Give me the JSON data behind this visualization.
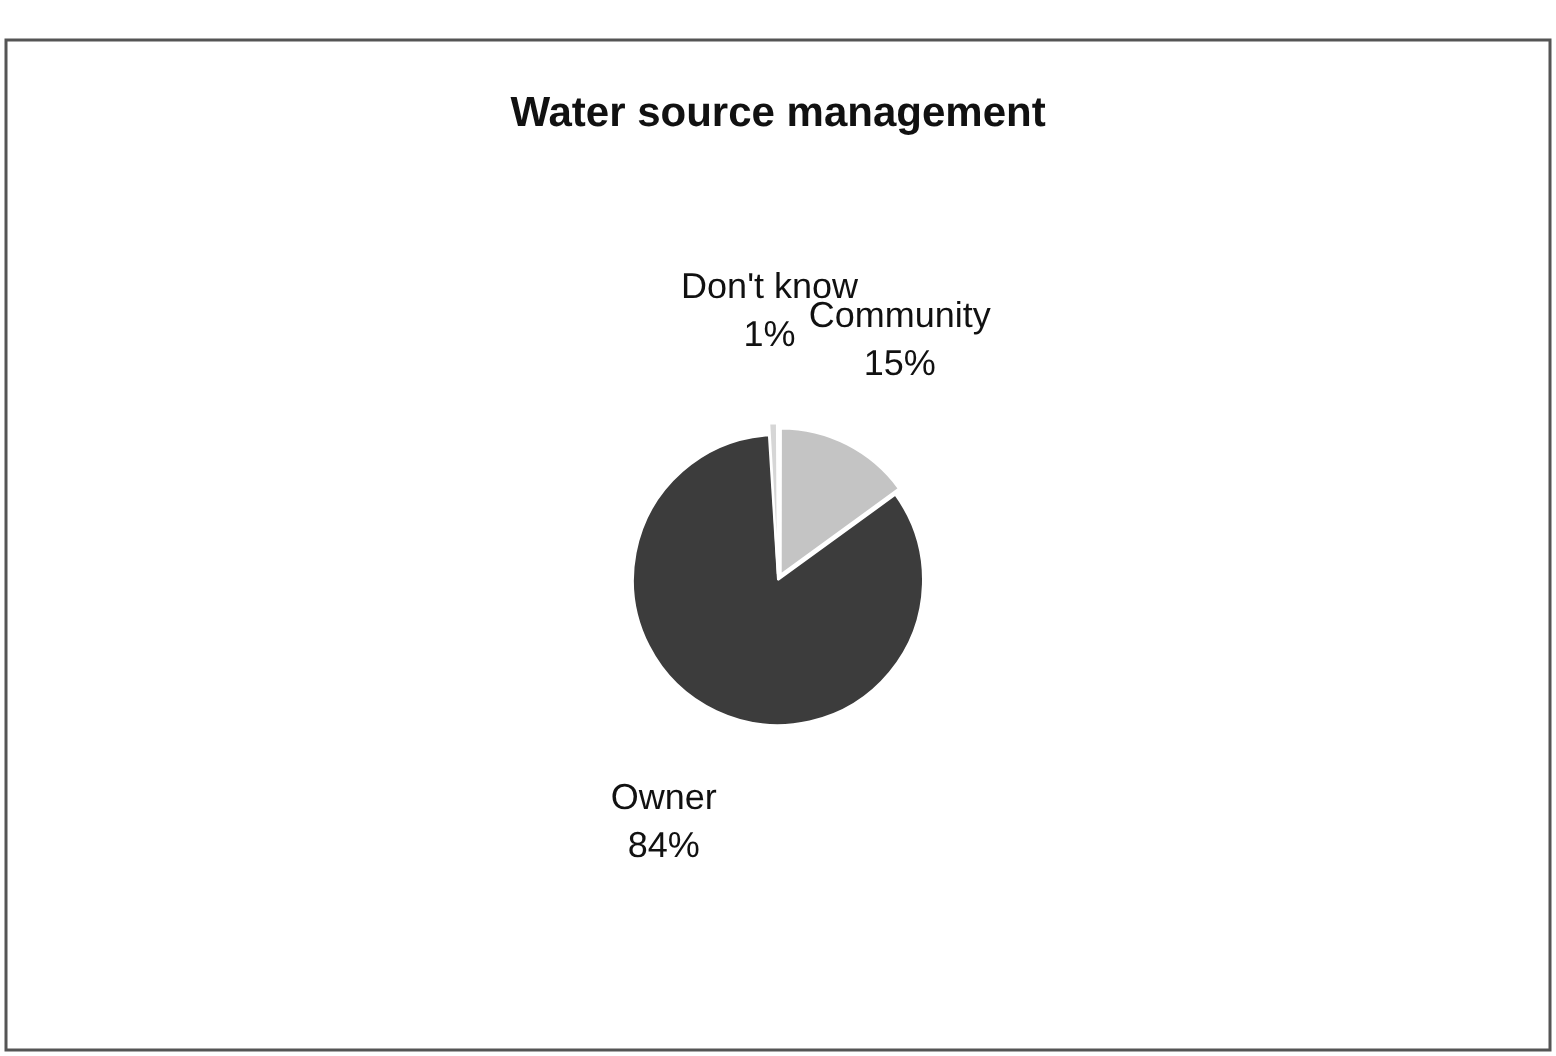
{
  "chart_data": {
    "type": "pie",
    "title": "Water source management",
    "categories": [
      "Community",
      "Owner",
      "Don't know"
    ],
    "values": [
      15,
      84,
      1
    ],
    "colors": [
      "#c4c4c4",
      "#3c3c3c",
      "#d6d6d6"
    ],
    "value_labels": [
      "15%",
      "84%",
      "1%"
    ]
  }
}
